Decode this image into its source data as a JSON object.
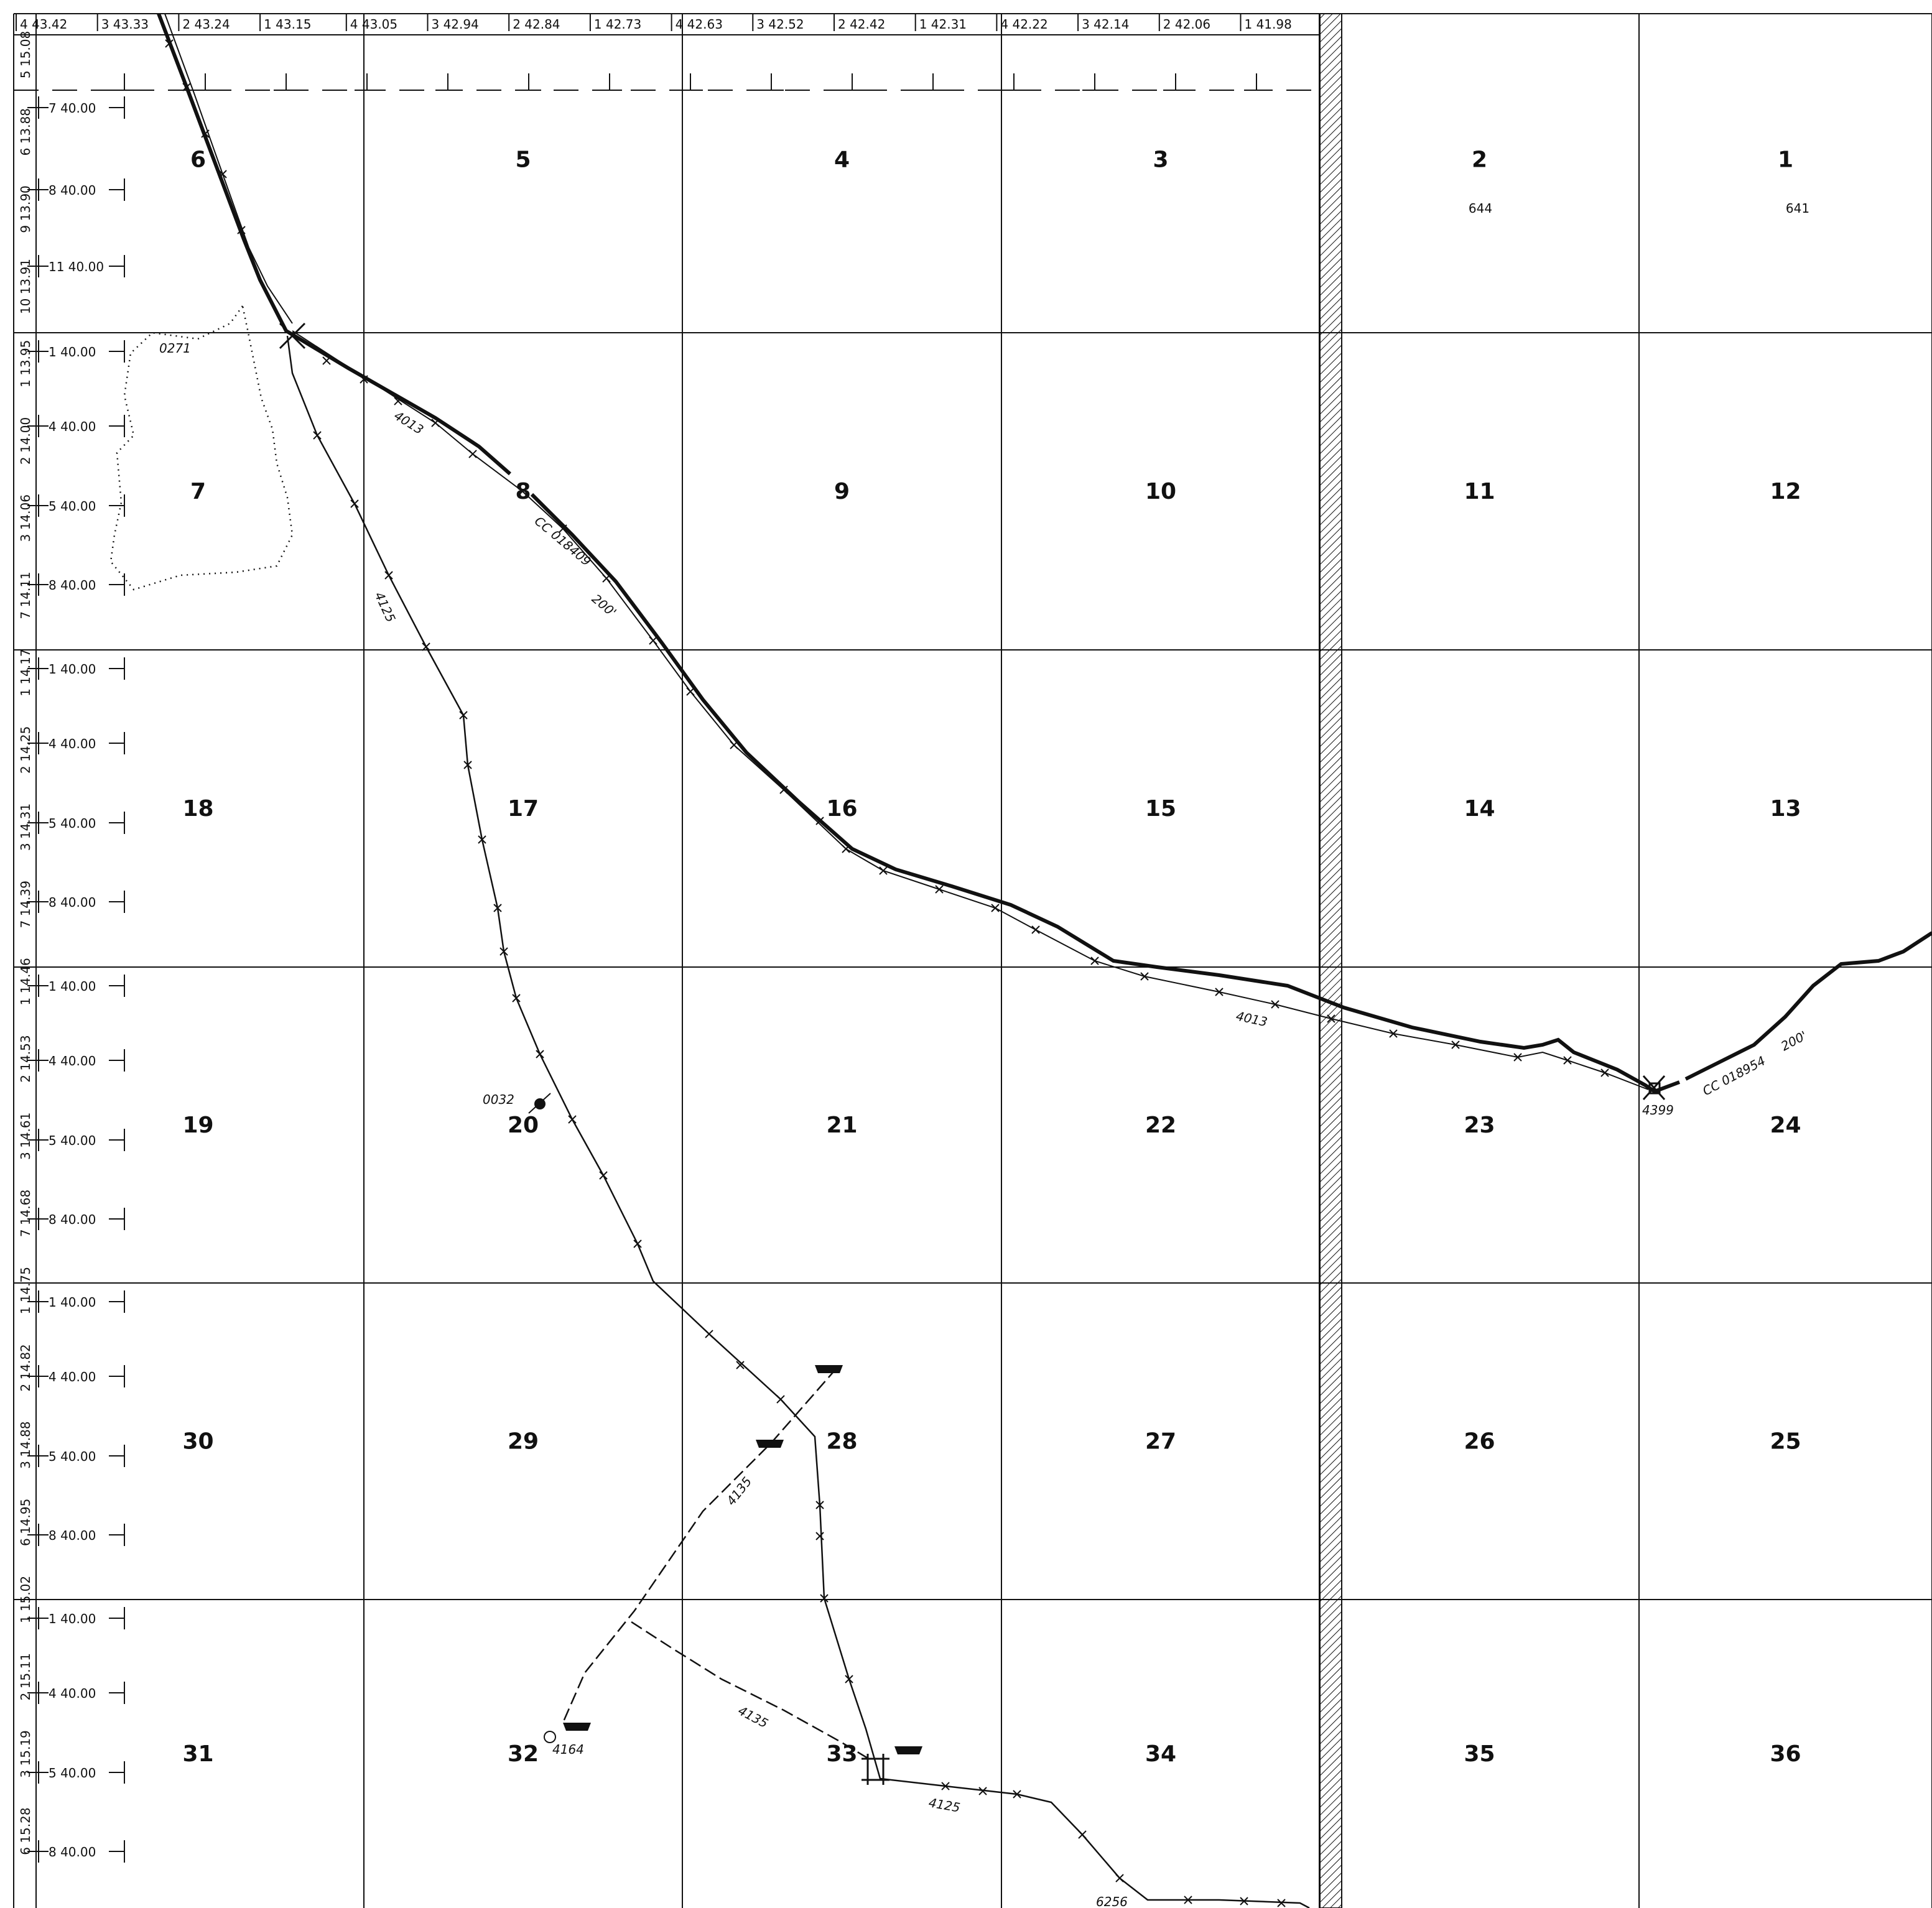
{
  "map": {
    "top_lot_labels": [
      "4 43.42",
      "3 43.33",
      "2 43.24",
      "1 43.15",
      "4 43.05",
      "3 42.94",
      "2 42.84",
      "1 42.73",
      "4 42.63",
      "3 42.52",
      "2 42.42",
      "1 42.31",
      "4 42.22",
      "3 42.14",
      "2 42.06",
      "1 41.98"
    ],
    "left_lot_labels": [
      "5 15.08",
      "6 13.88",
      "9 13.90",
      "10 13.91",
      "1 13.95",
      "2 14.00",
      "3 14.06",
      "7 14.11",
      "1 14.17",
      "2 14.25",
      "3 14.31",
      "7 14.39",
      "1 14.46",
      "2 14.53",
      "3 14.61",
      "7 14.68",
      "1 14.75",
      "2 14.82",
      "3 14.88",
      "6 14.95",
      "1 15.02",
      "2 15.11",
      "3 15.19",
      "6 15.28"
    ],
    "left_acre_labels": [
      "7 40.00",
      "8 40.00",
      "11 40.00",
      "1 40.00",
      "4 40.00",
      "5 40.00",
      "8 40.00",
      "1 40.00",
      "4 40.00",
      "5 40.00",
      "8 40.00",
      "1 40.00",
      "4 40.00",
      "5 40.00",
      "8 40.00",
      "1 40.00",
      "4 40.00",
      "5 40.00",
      "8 40.00",
      "1 40.00",
      "4 40.00",
      "5 40.00",
      "8 40.00"
    ],
    "sections": [
      [
        "6",
        "5",
        "4",
        "3",
        "2",
        "1"
      ],
      [
        "7",
        "8",
        "9",
        "10",
        "11",
        "12"
      ],
      [
        "18",
        "17",
        "16",
        "15",
        "14",
        "13"
      ],
      [
        "19",
        "20",
        "21",
        "22",
        "23",
        "24"
      ],
      [
        "30",
        "29",
        "28",
        "27",
        "26",
        "25"
      ],
      [
        "31",
        "32",
        "33",
        "34",
        "35",
        "36"
      ]
    ],
    "section_subnumbers": {
      "s2": "644",
      "s1": "641"
    },
    "feature_labels": {
      "area_0271": "0271",
      "line_4013_a": "4013",
      "line_4013_b": "4013",
      "row_cc018409": "CC 018409",
      "row_cc018409_width": "200'",
      "line_4125_a": "4125",
      "line_4125_b": "4125",
      "well_0032": "0032",
      "junction_4399": "4399",
      "row_cc018954": "CC 018954",
      "row_cc018954_width": "200'",
      "line_4135_a": "4135",
      "line_4135_b": "4135",
      "tank_4164": "4164",
      "marker_6256": "6256"
    },
    "colors": {
      "ink": "#111111",
      "paper": "#ffffff"
    }
  }
}
